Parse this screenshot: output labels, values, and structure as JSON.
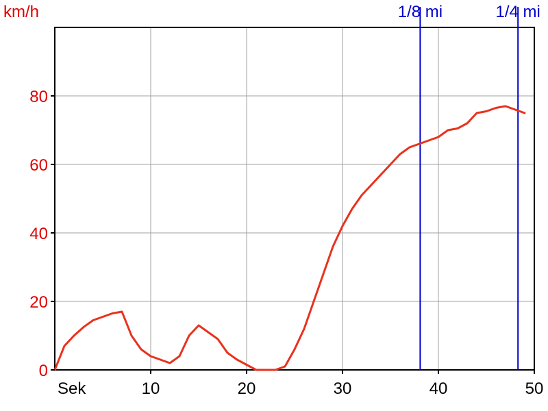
{
  "chart_data": {
    "type": "line",
    "title": "",
    "xlabel": "Sek",
    "ylabel": "km/h",
    "xlim": [
      0,
      50
    ],
    "ylim": [
      0,
      100
    ],
    "x_ticks": [
      10,
      20,
      30,
      40,
      50
    ],
    "y_ticks": [
      0,
      20,
      40,
      60,
      80
    ],
    "grid": true,
    "legend": "none",
    "colors": {
      "series": "#e8321e",
      "y_axis_text": "#e00000",
      "x_axis_text": "#000000",
      "markers": "#0000cc",
      "grid": "#a0a0a0"
    },
    "series": [
      {
        "x": [
          0,
          1,
          2,
          3,
          4,
          5,
          6,
          7,
          8,
          9,
          10,
          11,
          12,
          13,
          14,
          15,
          16,
          17,
          18,
          19,
          20,
          21,
          22,
          23,
          24,
          25,
          26,
          27,
          28,
          29,
          30,
          31,
          32,
          33,
          34,
          35,
          36,
          37,
          38,
          39,
          40,
          41,
          42,
          43,
          44,
          45,
          46,
          47,
          48,
          49
        ],
        "y": [
          0,
          7,
          10,
          12.5,
          14.5,
          15.5,
          16.5,
          17,
          10,
          6,
          4,
          3,
          2,
          4,
          10,
          13,
          11,
          9,
          5,
          3,
          1.5,
          0,
          0,
          0,
          1,
          6,
          12,
          20,
          28,
          36,
          42,
          47,
          51,
          54,
          57,
          60,
          63,
          65,
          66,
          67,
          68,
          70,
          70.5,
          72,
          75,
          75.5,
          76.5,
          77,
          76,
          75
        ]
      }
    ],
    "markers": [
      {
        "label": "1/8 mi",
        "x": 38.1
      },
      {
        "label": "1/4 mi",
        "x": 48.3
      }
    ]
  }
}
